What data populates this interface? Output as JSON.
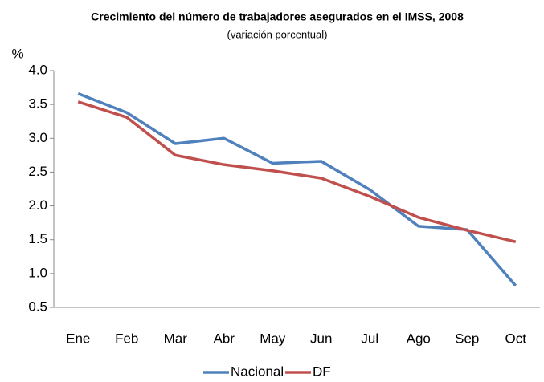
{
  "chart_data": {
    "type": "line",
    "title": "Crecimiento del número de trabajadores  asegurados en el IMSS, 2008",
    "subtitle": "(variación porcentual)",
    "y_label": "%",
    "categories": [
      "Ene",
      "Feb",
      "Mar",
      "Abr",
      "May",
      "Jun",
      "Jul",
      "Ago",
      "Sep",
      "Oct"
    ],
    "series": [
      {
        "name": "Nacional",
        "color": "#4f81bd",
        "values": [
          3.66,
          3.38,
          2.92,
          3.0,
          2.63,
          2.66,
          2.24,
          1.7,
          1.65,
          0.82
        ]
      },
      {
        "name": "DF",
        "color": "#c0504d",
        "values": [
          3.54,
          3.31,
          2.75,
          2.61,
          2.52,
          2.41,
          2.14,
          1.83,
          1.64,
          1.47
        ]
      }
    ],
    "ylim": [
      0.5,
      4.0
    ],
    "yticks": [
      {
        "value": 0.5,
        "label": "0.5"
      },
      {
        "value": 1.0,
        "label": "1.0"
      },
      {
        "value": 1.5,
        "label": "1.5"
      },
      {
        "value": 2.0,
        "label": "2.0"
      },
      {
        "value": 2.5,
        "label": "2.5"
      },
      {
        "value": 3.0,
        "label": "3.0"
      },
      {
        "value": 3.5,
        "label": "3.5"
      },
      {
        "value": 4.0,
        "label": "4.0"
      }
    ],
    "grid": false,
    "legend": "bottom"
  }
}
